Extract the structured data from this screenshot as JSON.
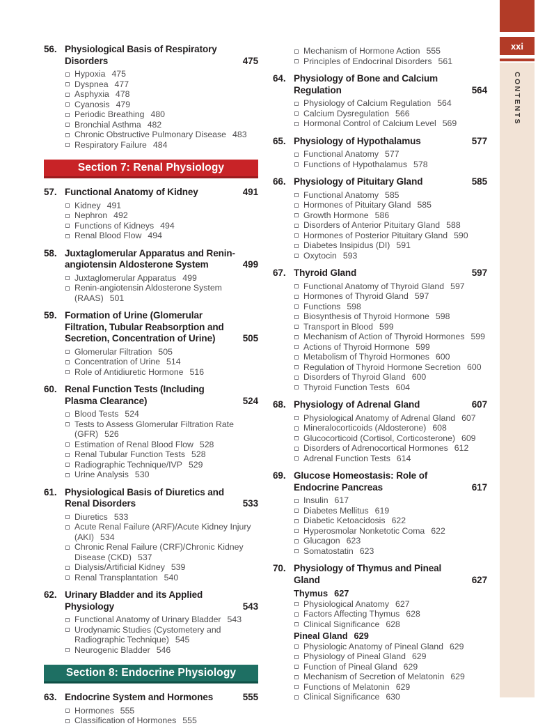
{
  "page": {
    "folio": "xxi",
    "sidebar_label": "CONTENTS"
  },
  "colors": {
    "section_red": "#c82327",
    "section_red_dark": "#9b1c1e",
    "section_teal": "#1e6f63",
    "section_teal_dark": "#0e4f45",
    "tab_red": "#b23b27",
    "sidebar_beige": "#f2e3d6",
    "title_text": "#221e1f",
    "entry_text": "#4e4d4f"
  },
  "columns": [
    {
      "blocks": [
        {
          "type": "chapter",
          "number": "56.",
          "title": "Physiological Basis of Respiratory Disorders",
          "page": "475",
          "items": [
            {
              "text": "Hypoxia",
              "page": "475"
            },
            {
              "text": "Dyspnea",
              "page": "477"
            },
            {
              "text": "Asphyxia",
              "page": "478"
            },
            {
              "text": "Cyanosis",
              "page": "479"
            },
            {
              "text": "Periodic Breathing",
              "page": "480"
            },
            {
              "text": "Bronchial Asthma",
              "page": "482"
            },
            {
              "text": "Chronic Obstructive Pulmonary Disease",
              "page": "483"
            },
            {
              "text": "Respiratory Failure",
              "page": "484"
            }
          ]
        },
        {
          "type": "section",
          "label": "Section 7: Renal Physiology",
          "theme": "red"
        },
        {
          "type": "chapter",
          "number": "57.",
          "title": "Functional Anatomy of Kidney",
          "page": "491",
          "items": [
            {
              "text": "Kidney",
              "page": "491"
            },
            {
              "text": "Nephron",
              "page": "492"
            },
            {
              "text": "Functions of Kidneys",
              "page": "494"
            },
            {
              "text": "Renal Blood Flow",
              "page": "494"
            }
          ]
        },
        {
          "type": "chapter",
          "number": "58.",
          "title": "Juxtaglomerular Apparatus and Renin-angiotensin Aldosterone System",
          "page": "499",
          "items": [
            {
              "text": "Juxtaglomerular Apparatus",
              "page": "499"
            },
            {
              "text": "Renin-angiotensin Aldosterone System (RAAS)",
              "page": "501"
            }
          ]
        },
        {
          "type": "chapter",
          "number": "59.",
          "title": "Formation of Urine (Glomerular Filtration, Tubular Reabsorption and Secretion, Concentration of Urine)",
          "page": "505",
          "items": [
            {
              "text": "Glomerular Filtration",
              "page": "505"
            },
            {
              "text": "Concentration of Urine",
              "page": "514"
            },
            {
              "text": "Role of Antidiuretic Hormone",
              "page": "516"
            }
          ]
        },
        {
          "type": "chapter",
          "number": "60.",
          "title": "Renal Function Tests (Including Plasma Clearance)",
          "page": "524",
          "items": [
            {
              "text": "Blood Tests",
              "page": "524"
            },
            {
              "text": "Tests to Assess Glomerular Filtration Rate (GFR)",
              "page": "526"
            },
            {
              "text": "Estimation of Renal Blood Flow",
              "page": "528"
            },
            {
              "text": "Renal Tubular Function Tests",
              "page": "528"
            },
            {
              "text": "Radiographic Technique/IVP",
              "page": "529"
            },
            {
              "text": "Urine Analysis",
              "page": "530"
            }
          ]
        },
        {
          "type": "chapter",
          "number": "61.",
          "title": "Physiological Basis of Diuretics and Renal Disorders",
          "page": "533",
          "items": [
            {
              "text": "Diuretics",
              "page": "533"
            },
            {
              "text": "Acute Renal Failure (ARF)/Acute Kidney Injury (AKI)",
              "page": "534"
            },
            {
              "text": "Chronic Renal Failure (CRF)/Chronic Kidney Disease (CKD)",
              "page": "537"
            },
            {
              "text": "Dialysis/Artificial Kidney",
              "page": "539"
            },
            {
              "text": "Renal Transplantation",
              "page": "540"
            }
          ]
        },
        {
          "type": "chapter",
          "number": "62.",
          "title": "Urinary Bladder and its Applied Physiology",
          "page": "543",
          "items": [
            {
              "text": "Functional Anatomy of Urinary Bladder",
              "page": "543"
            },
            {
              "text": "Urodynamic Studies (Cystometery and Radiographic Technique)",
              "page": "545"
            },
            {
              "text": "Neurogenic Bladder",
              "page": "546"
            }
          ]
        },
        {
          "type": "section",
          "label": "Section 8: Endocrine Physiology",
          "theme": "teal"
        },
        {
          "type": "chapter",
          "number": "63.",
          "title": "Endocrine System and Hormones",
          "page": "555",
          "items": [
            {
              "text": "Hormones",
              "page": "555"
            },
            {
              "text": "Classification of Hormones",
              "page": "555"
            }
          ]
        }
      ]
    },
    {
      "blocks": [
        {
          "type": "chapter",
          "items": [
            {
              "text": "Mechanism of Hormone Action",
              "page": "555"
            },
            {
              "text": "Principles of Endocrinal Disorders",
              "page": "561"
            }
          ]
        },
        {
          "type": "chapter",
          "number": "64.",
          "title": "Physiology of Bone and Calcium Regulation",
          "page": "564",
          "items": [
            {
              "text": "Physiology of Calcium Regulation",
              "page": "564"
            },
            {
              "text": "Calcium Dysregulation",
              "page": "566"
            },
            {
              "text": "Hormonal Control of Calcium Level",
              "page": "569"
            }
          ]
        },
        {
          "type": "chapter",
          "number": "65.",
          "title": "Physiology of Hypothalamus",
          "page": "577",
          "items": [
            {
              "text": "Functional Anatomy",
              "page": "577"
            },
            {
              "text": "Functions of Hypothalamus",
              "page": "578"
            }
          ]
        },
        {
          "type": "chapter",
          "number": "66.",
          "title": "Physiology of Pituitary Gland",
          "page": "585",
          "items": [
            {
              "text": "Functional Anatomy",
              "page": "585"
            },
            {
              "text": "Hormones of Pituitary Gland",
              "page": "585"
            },
            {
              "text": "Growth Hormone",
              "page": "586"
            },
            {
              "text": "Disorders of Anterior Pituitary Gland",
              "page": "588"
            },
            {
              "text": "Hormones of Posterior Pituitary Gland",
              "page": "590"
            },
            {
              "text": "Diabetes Insipidus (DI)",
              "page": "591"
            },
            {
              "text": "Oxytocin",
              "page": "593"
            }
          ]
        },
        {
          "type": "chapter",
          "number": "67.",
          "title": "Thyroid Gland",
          "page": "597",
          "items": [
            {
              "text": "Functional Anatomy of Thyroid Gland",
              "page": "597"
            },
            {
              "text": "Hormones of Thyroid Gland",
              "page": "597"
            },
            {
              "text": "Functions",
              "page": "598"
            },
            {
              "text": "Biosynthesis of Thyroid Hormone",
              "page": "598"
            },
            {
              "text": "Transport in Blood",
              "page": "599"
            },
            {
              "text": "Mechanism of Action of Thyroid Hormones",
              "page": "599"
            },
            {
              "text": "Actions of Thyroid Hormone",
              "page": "599"
            },
            {
              "text": "Metabolism of Thyroid Hormones",
              "page": "600"
            },
            {
              "text": "Regulation of Thyroid Hormone Secretion",
              "page": "600"
            },
            {
              "text": "Disorders of Thyroid Gland",
              "page": "600"
            },
            {
              "text": "Thyroid Function Tests",
              "page": "604"
            }
          ]
        },
        {
          "type": "chapter",
          "number": "68.",
          "title": "Physiology of Adrenal Gland",
          "page": "607",
          "items": [
            {
              "text": "Physiological Anatomy of Adrenal Gland",
              "page": "607"
            },
            {
              "text": "Mineralocorticoids (Aldosterone)",
              "page": "608"
            },
            {
              "text": "Glucocorticoid (Cortisol, Corticosterone)",
              "page": "609"
            },
            {
              "text": "Disorders of Adrenocortical Hormones",
              "page": "612"
            },
            {
              "text": "Adrenal Function Tests",
              "page": "614"
            }
          ]
        },
        {
          "type": "chapter",
          "number": "69.",
          "title": "Glucose Homeostasis: Role of Endocrine Pancreas",
          "page": "617",
          "items": [
            {
              "text": "Insulin",
              "page": "617"
            },
            {
              "text": "Diabetes Mellitus",
              "page": "619"
            },
            {
              "text": "Diabetic Ketoacidosis",
              "page": "622"
            },
            {
              "text": "Hyperosmolar Nonketotic Coma",
              "page": "622"
            },
            {
              "text": "Glucagon",
              "page": "623"
            },
            {
              "text": "Somatostatin",
              "page": "623"
            }
          ]
        },
        {
          "type": "chapter",
          "number": "70.",
          "title": "Physiology of Thymus and Pineal Gland",
          "page": "627",
          "items": [
            {
              "text": "Thymus",
              "page": "627",
              "subheading": true
            },
            {
              "text": "Physiological Anatomy",
              "page": "627"
            },
            {
              "text": "Factors Affecting Thymus",
              "page": "628"
            },
            {
              "text": "Clinical Significance",
              "page": "628"
            },
            {
              "text": "Pineal Gland",
              "page": "629",
              "subheading": true
            },
            {
              "text": "Physiologic Anatomy of Pineal Gland",
              "page": "629"
            },
            {
              "text": "Physiology of Pineal Gland",
              "page": "629"
            },
            {
              "text": "Function of Pineal Gland",
              "page": "629"
            },
            {
              "text": "Mechanism of Secretion of Melatonin",
              "page": "629"
            },
            {
              "text": "Functions of Melatonin",
              "page": "629"
            },
            {
              "text": "Clinical Significance",
              "page": "630"
            }
          ]
        }
      ]
    }
  ]
}
